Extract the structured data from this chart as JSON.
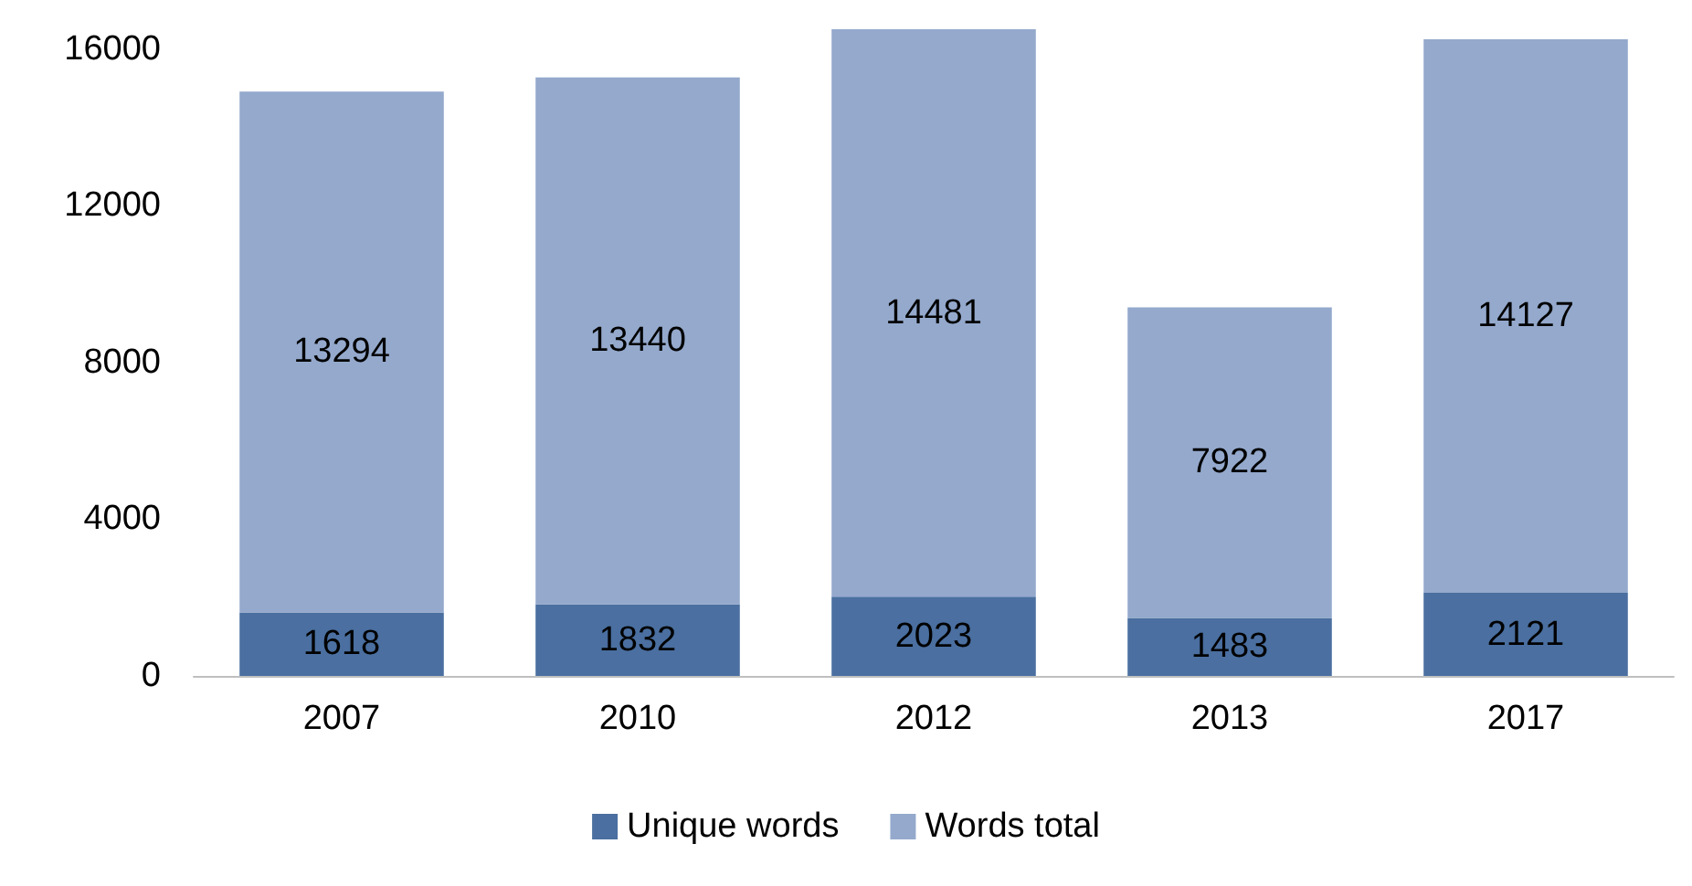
{
  "chart_data": {
    "type": "bar",
    "stacked": true,
    "categories": [
      "2007",
      "2010",
      "2012",
      "2013",
      "2017"
    ],
    "series": [
      {
        "name": "Unique words",
        "color": "#4a6fa0",
        "values": [
          1618,
          1832,
          2023,
          1483,
          2121
        ]
      },
      {
        "name": "Words total",
        "color": "#94a9cc",
        "values": [
          13294,
          13440,
          14481,
          7922,
          14127
        ]
      }
    ],
    "ylim": [
      0,
      16550
    ],
    "yticks": [
      0,
      4000,
      8000,
      12000,
      16000
    ],
    "grid": false,
    "legend": "bottom",
    "data_labels": true
  }
}
